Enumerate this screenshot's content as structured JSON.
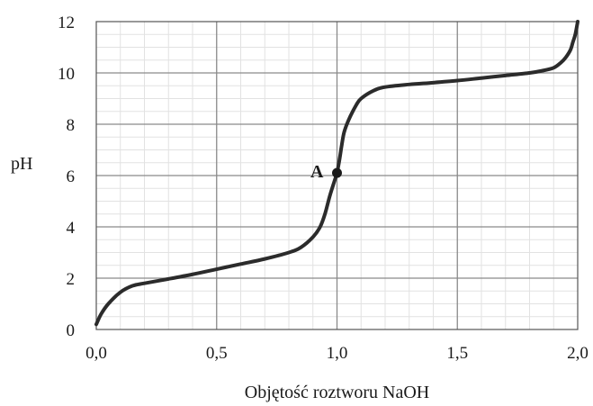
{
  "chart_data": {
    "type": "line",
    "title": "",
    "xlabel": "Objętość roztworu NaOH",
    "ylabel": "pH",
    "xlim": [
      0,
      2
    ],
    "ylim": [
      0,
      12
    ],
    "x_ticks": [
      "0,0",
      "0,5",
      "1,0",
      "1,5",
      "2,0"
    ],
    "y_ticks": [
      "0",
      "2",
      "4",
      "6",
      "8",
      "10",
      "12"
    ],
    "grid": true,
    "minor_grid": true,
    "series": [
      {
        "x": [
          0.0,
          0.02,
          0.05,
          0.1,
          0.15,
          0.2,
          0.3,
          0.4,
          0.5,
          0.6,
          0.7,
          0.8,
          0.85,
          0.9,
          0.93,
          0.95,
          0.97,
          0.99,
          1.0,
          1.01,
          1.02,
          1.03,
          1.05,
          1.08,
          1.1,
          1.15,
          1.2,
          1.3,
          1.4,
          1.5,
          1.6,
          1.7,
          1.8,
          1.85,
          1.9,
          1.93,
          1.95,
          1.97,
          1.98,
          1.99,
          2.0
        ],
        "y": [
          0.2,
          0.6,
          1.0,
          1.45,
          1.7,
          1.8,
          1.97,
          2.15,
          2.35,
          2.55,
          2.75,
          3.0,
          3.2,
          3.6,
          4.0,
          4.5,
          5.2,
          5.8,
          6.1,
          6.6,
          7.2,
          7.7,
          8.2,
          8.75,
          9.0,
          9.3,
          9.45,
          9.55,
          9.62,
          9.7,
          9.8,
          9.9,
          10.0,
          10.08,
          10.2,
          10.4,
          10.6,
          10.9,
          11.2,
          11.5,
          12.0
        ],
        "color": "#2b2b2b"
      }
    ],
    "annotations": [
      {
        "label": "A",
        "x": 1.0,
        "y": 6.1
      }
    ]
  }
}
